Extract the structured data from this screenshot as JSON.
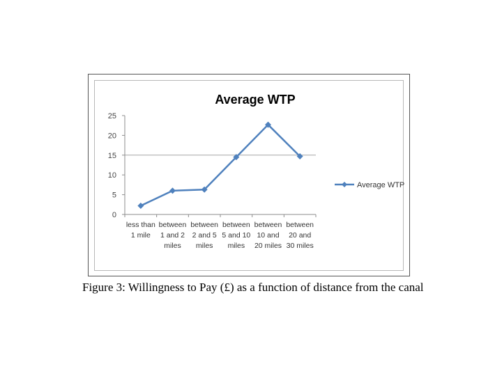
{
  "chart_data": {
    "type": "line",
    "title": "Average WTP",
    "categories": [
      [
        "less than",
        "1 mile"
      ],
      [
        "between",
        "1 and 2",
        "miles"
      ],
      [
        "between",
        "2 and 5",
        "miles"
      ],
      [
        "between",
        "5 and 10",
        "miles"
      ],
      [
        "between",
        "10 and",
        "20 miles"
      ],
      [
        "between",
        "20 and",
        "30 miles"
      ]
    ],
    "series": [
      {
        "name": "Average WTP",
        "values": [
          2.2,
          6.0,
          6.3,
          14.5,
          22.7,
          14.7
        ],
        "color": "#4f81bd"
      }
    ],
    "ylim": [
      0,
      25
    ],
    "yticks": [
      0,
      5,
      10,
      15,
      20,
      25
    ],
    "grid": "horizontal major at 15 only",
    "legend": "right",
    "xlabel": "",
    "ylabel": ""
  },
  "caption": "Figure 3:  Willingness to Pay (£) as a function of distance from the canal"
}
